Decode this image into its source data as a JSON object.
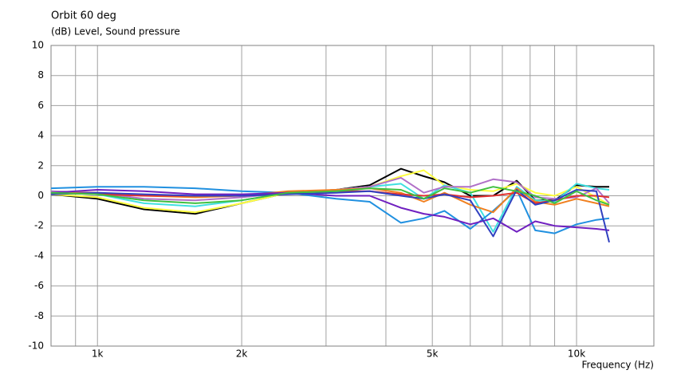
{
  "chart_data": {
    "type": "line",
    "title": "Orbit 60 deg",
    "y_label": "(dB)  Level, Sound pressure",
    "x_label": "Frequency  (Hz)",
    "log_x": true,
    "grid": true,
    "x": [
      800,
      1000,
      1250,
      1600,
      2000,
      2500,
      3150,
      3700,
      4300,
      4800,
      5300,
      6000,
      6700,
      7500,
      8200,
      9000,
      10000,
      11000,
      11700
    ],
    "series": [
      {
        "color": "#000000",
        "values": [
          0.1,
          -0.2,
          -0.9,
          -1.2,
          -0.5,
          0.2,
          0.4,
          0.7,
          1.8,
          1.3,
          0.9,
          0,
          0,
          1.0,
          -0.3,
          -0.3,
          0.7,
          0.6,
          0.6
        ]
      },
      {
        "color": "#ffff40",
        "values": [
          0.1,
          -0.1,
          -0.8,
          -1.1,
          -0.5,
          0.2,
          0.4,
          0.6,
          1.3,
          1.7,
          0.7,
          0.4,
          0.3,
          0.8,
          0.2,
          0,
          0.6,
          -0.1,
          -0.6
        ]
      },
      {
        "color": "#40e0e0",
        "values": [
          0.3,
          0.1,
          -0.5,
          -0.7,
          -0.3,
          0.2,
          0.4,
          0.6,
          0.8,
          -0.2,
          0.7,
          0.2,
          -2.4,
          0.6,
          -0.3,
          -0.4,
          0.8,
          0.5,
          0.4
        ]
      },
      {
        "color": "#b070c8",
        "values": [
          0.3,
          0.2,
          -0.2,
          -0.3,
          -0.1,
          0.2,
          0.4,
          0.6,
          1.2,
          0.2,
          0.6,
          0.6,
          1.1,
          0.9,
          -0.1,
          -0.2,
          -0.1,
          0.5,
          -0.5
        ]
      },
      {
        "color": "#2090e0",
        "values": [
          0.5,
          0.6,
          0.6,
          0.5,
          0.3,
          0.2,
          -0.2,
          -0.4,
          -1.8,
          -1.5,
          -1.0,
          -2.2,
          -1.0,
          0.4,
          -2.3,
          -2.5,
          -1.9,
          -1.6,
          -1.5
        ]
      },
      {
        "color": "#f08020",
        "values": [
          0.2,
          0.2,
          0,
          -0.1,
          0,
          0.3,
          0.4,
          0.5,
          0.2,
          -0.4,
          0.2,
          -0.6,
          -1.1,
          0.5,
          -0.4,
          -0.6,
          -0.2,
          -0.5,
          -0.7
        ]
      },
      {
        "color": "#e03030",
        "values": [
          0.2,
          0.1,
          0,
          0,
          0,
          0.2,
          0.3,
          0.3,
          0.1,
          0,
          0.1,
          -0.1,
          0,
          0.2,
          -0.5,
          -0.3,
          0,
          0,
          -0.1
        ]
      },
      {
        "color": "#7020c0",
        "values": [
          0.2,
          0.4,
          0.3,
          0.1,
          0.1,
          0.2,
          0,
          0,
          -0.8,
          -1.2,
          -1.4,
          -1.9,
          -1.5,
          -2.4,
          -1.7,
          -2.0,
          -2.1,
          -2.2,
          -2.3
        ]
      },
      {
        "color": "#3040c0",
        "values": [
          0.1,
          0.2,
          0.1,
          0,
          0,
          0.1,
          0.2,
          0.3,
          0,
          -0.2,
          0.1,
          -0.3,
          -2.7,
          0.4,
          -0.6,
          -0.3,
          0.4,
          0.3,
          -3.1
        ]
      },
      {
        "color": "#40c040",
        "values": [
          0.2,
          0.1,
          -0.3,
          -0.5,
          -0.3,
          0.2,
          0.3,
          0.5,
          0.4,
          -0.2,
          0.5,
          0.2,
          0.6,
          0.3,
          0,
          -0.5,
          0.3,
          -0.3,
          -0.6
        ]
      }
    ],
    "xlim": [
      800,
      14500
    ],
    "xticks": [
      {
        "value": 1000,
        "label": "1k"
      },
      {
        "value": 2000,
        "label": "2k"
      },
      {
        "value": 5000,
        "label": "5k"
      },
      {
        "value": 10000,
        "label": "10k"
      }
    ],
    "xminor": [
      900,
      3000,
      4000,
      6000,
      7000,
      8000,
      9000
    ],
    "ylim": [
      -10,
      10
    ],
    "yticks": [
      -10,
      -8,
      -6,
      -4,
      -2,
      0,
      2,
      4,
      6,
      8,
      10
    ]
  }
}
